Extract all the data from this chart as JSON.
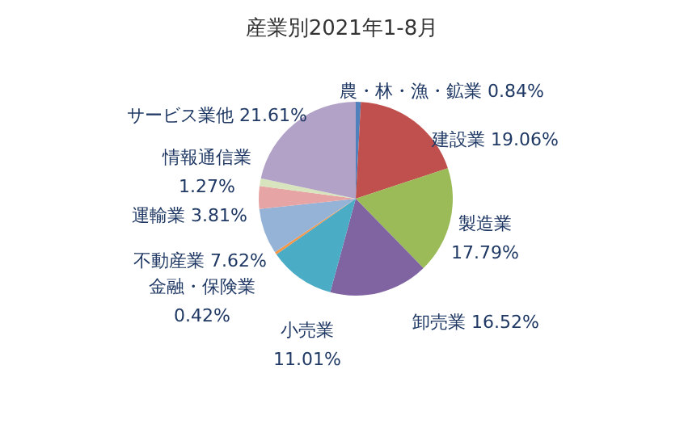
{
  "chart_data": {
    "type": "pie",
    "title": "産業別2021年1-8月",
    "categories": [
      "農・林・漁・鉱業",
      "建設業",
      "製造業",
      "卸売業",
      "小売業",
      "金融・保険業",
      "不動産業",
      "運輸業",
      "情報通信業",
      "サービス業他"
    ],
    "values": [
      0.84,
      19.06,
      17.79,
      16.52,
      11.01,
      0.42,
      7.62,
      3.81,
      1.27,
      21.61
    ],
    "value_labels": [
      "0.84%",
      "19.06%",
      "17.79%",
      "16.52%",
      "11.01%",
      "0.42%",
      "7.62%",
      "3.81%",
      "1.27%",
      "21.61%"
    ],
    "colors": [
      "#4f81bd",
      "#c0504d",
      "#9bbb59",
      "#8064a2",
      "#4bacc6",
      "#f79646",
      "#95b3d7",
      "#e6a5a4",
      "#d7e4bd",
      "#b2a2c7"
    ],
    "legend": false
  }
}
